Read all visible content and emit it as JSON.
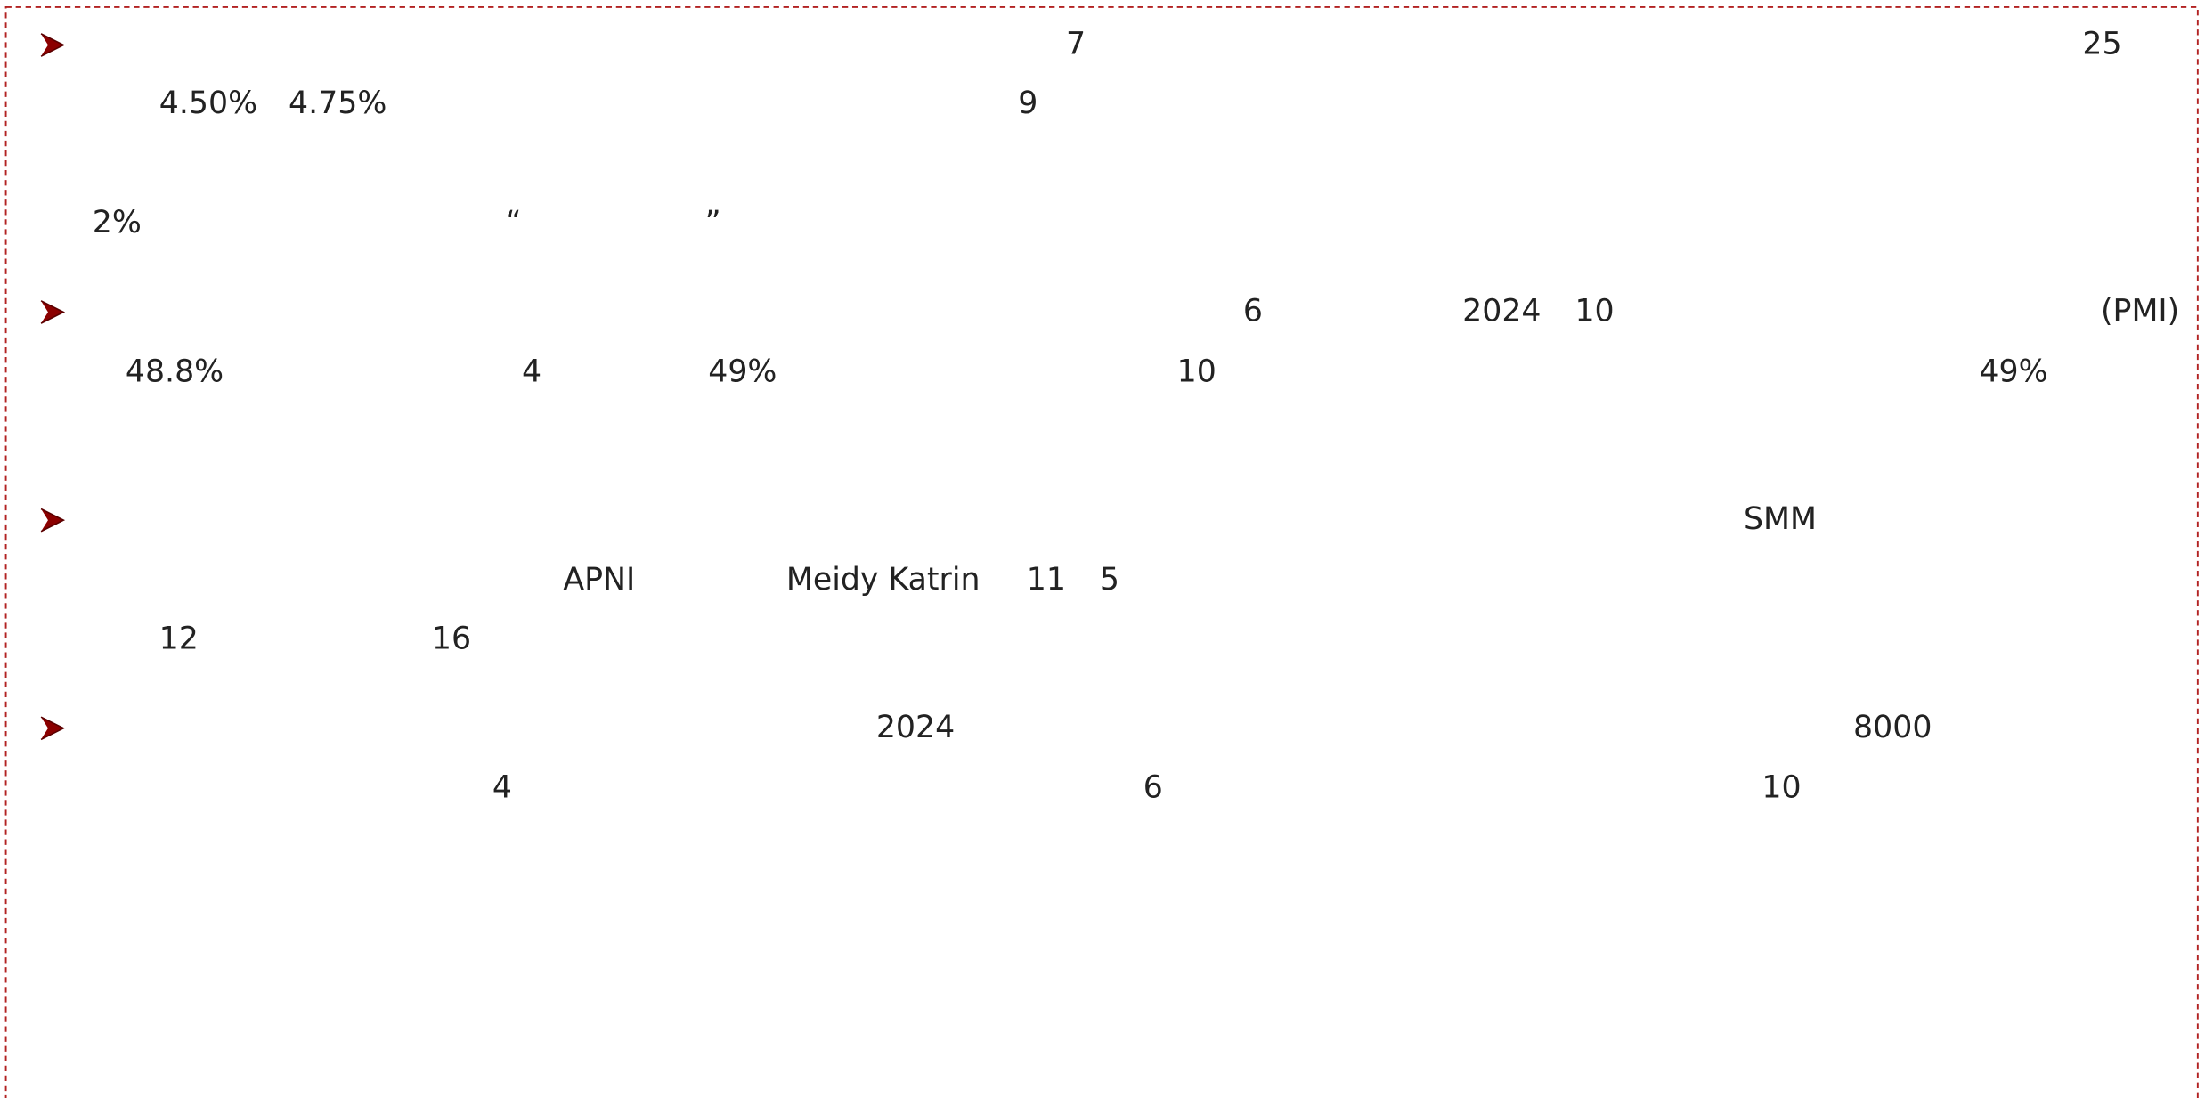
{
  "paragraphs": [
    {
      "lines": [
        [
          "7",
          "25"
        ],
        [
          "4.50%",
          "4.75%",
          "9"
        ],
        [
          "2%",
          "“",
          "”"
        ]
      ]
    },
    {
      "lines": [
        [
          "6",
          "2024",
          "10",
          "(PMI)"
        ],
        [
          "48.8%",
          "4",
          "49%",
          "10",
          "49%"
        ]
      ]
    },
    {
      "lines": [
        [
          "SMM"
        ],
        [
          "APNI",
          "Meidy Katrin",
          "11",
          "5"
        ],
        [
          "12",
          "16"
        ]
      ]
    },
    {
      "lines": [
        [
          "2024",
          "8000"
        ],
        [
          "4",
          "6",
          "10"
        ]
      ]
    }
  ]
}
